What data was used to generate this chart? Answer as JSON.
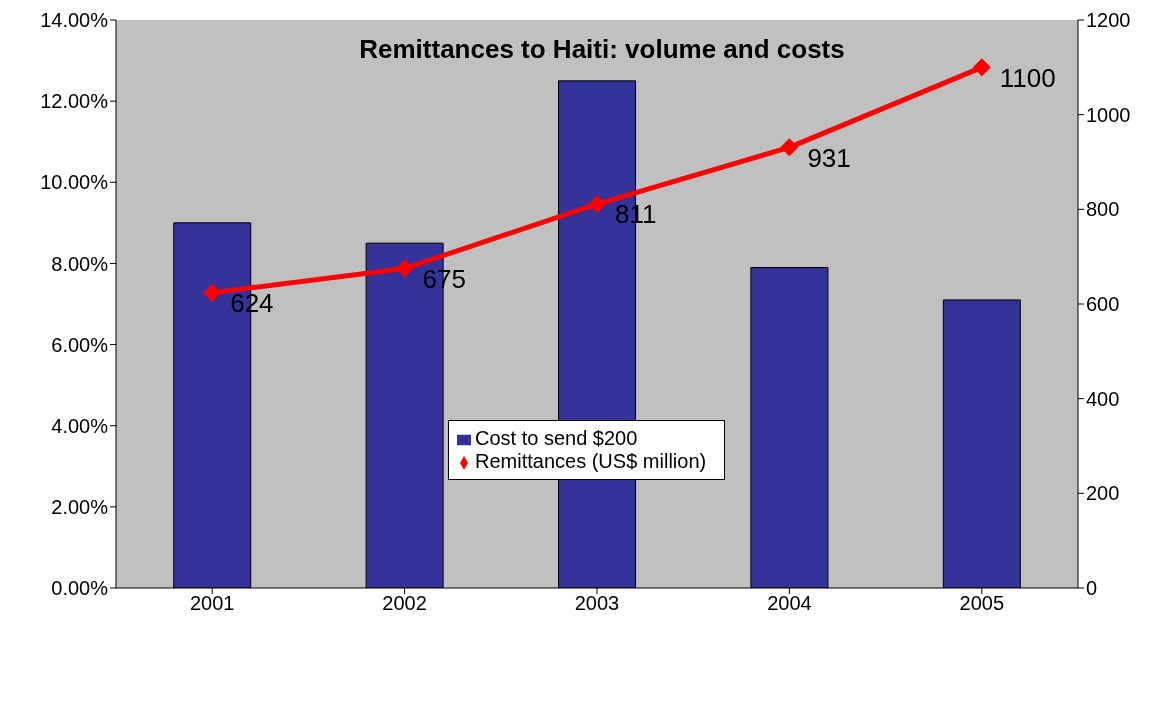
{
  "chart_data": {
    "type": "bar",
    "title": "Remittances to Haiti: volume and costs",
    "categories": [
      "2001",
      "2002",
      "2003",
      "2004",
      "2005"
    ],
    "series": [
      {
        "name": "Cost to send $200",
        "color": "#333399",
        "values": [
          9.0,
          8.5,
          12.5,
          7.9,
          7.1
        ]
      },
      {
        "name": "Remittances (US$ million)",
        "type": "line",
        "axis": "y2",
        "color": "#ff0000",
        "marker": "diamond",
        "values": [
          624,
          675,
          811,
          931,
          1100
        ],
        "value_labels": [
          "624",
          "675",
          "811",
          "931",
          "1100"
        ]
      }
    ],
    "ylim": [
      0,
      14
    ],
    "yticks": [
      {
        "value": 0,
        "label": "0.00%"
      },
      {
        "value": 2,
        "label": "2.00%"
      },
      {
        "value": 4,
        "label": "4.00%"
      },
      {
        "value": 6,
        "label": "6.00%"
      },
      {
        "value": 8,
        "label": "8.00%"
      },
      {
        "value": 10,
        "label": "10.00%"
      },
      {
        "value": 12,
        "label": "12.00%"
      },
      {
        "value": 14,
        "label": "14.00%"
      }
    ],
    "y2lim": [
      0,
      1200
    ],
    "y2ticks": [
      0,
      200,
      400,
      600,
      800,
      1000,
      1200
    ],
    "grid": false,
    "legend": "center"
  }
}
